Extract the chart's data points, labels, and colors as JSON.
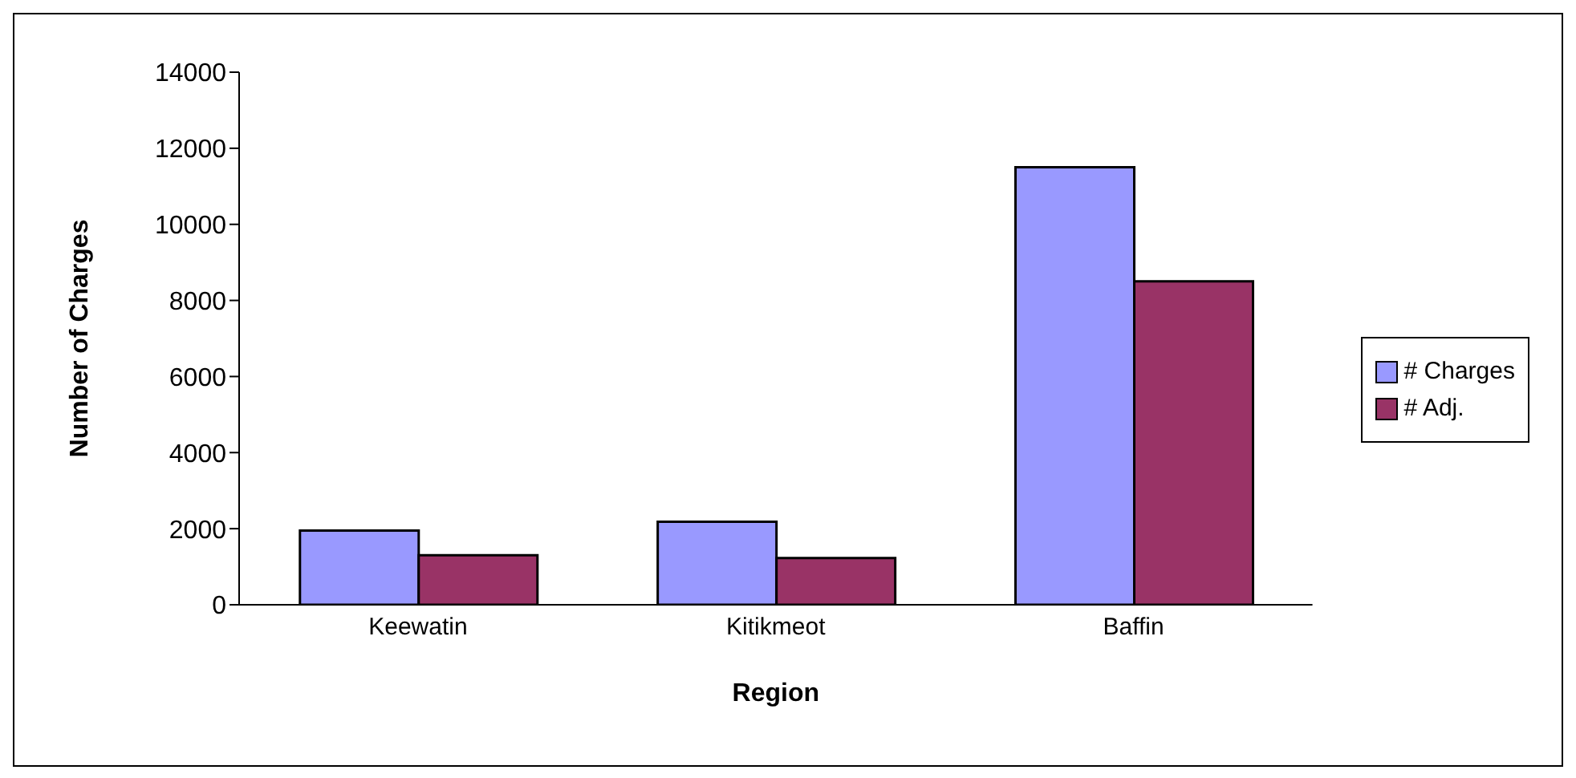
{
  "chart_data": {
    "type": "bar",
    "xlabel": "Region",
    "ylabel": "Number of Charges",
    "categories": [
      "Keewatin",
      "Kitikmeot",
      "Baffin"
    ],
    "series": [
      {
        "name": "# Charges",
        "color": "#9999ff",
        "values": [
          1950,
          2180,
          11500
        ]
      },
      {
        "name": "# Adj.",
        "color": "#993366",
        "values": [
          1300,
          1230,
          8500
        ]
      }
    ],
    "ylim": [
      0,
      14000
    ],
    "yticks": [
      0,
      2000,
      4000,
      6000,
      8000,
      10000,
      12000,
      14000
    ],
    "grid": false,
    "legend": "right"
  }
}
